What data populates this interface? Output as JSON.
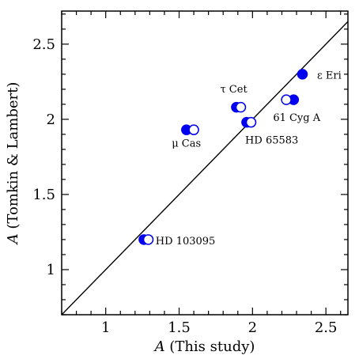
{
  "chart_data": {
    "type": "scatter",
    "xlabel_var": "A",
    "xlabel_text": " (This study)",
    "ylabel_var": "A",
    "ylabel_text": " (Tomkin & Lambert)",
    "xlim": [
      0.7,
      2.65
    ],
    "ylim": [
      0.7,
      2.72
    ],
    "xticks": [
      1,
      1.5,
      2,
      2.5
    ],
    "xtick_labels": [
      "1",
      "1.5",
      "2",
      "2.5"
    ],
    "yticks": [
      1,
      1.5,
      2,
      2.5
    ],
    "ytick_labels": [
      "1",
      "1.5",
      "2",
      "2.5"
    ],
    "identity_line": true,
    "grid": false,
    "colors": {
      "points": "#0000ee",
      "axes": "#000000"
    },
    "series": [
      {
        "marker": "filled-circle",
        "x": [
          1.26,
          1.55,
          1.89,
          1.96,
          2.28,
          2.34
        ],
        "y": [
          1.2,
          1.93,
          2.08,
          1.98,
          2.13,
          2.3
        ]
      },
      {
        "marker": "open-circle",
        "x": [
          1.29,
          1.6,
          1.92,
          1.99,
          2.23
        ],
        "y": [
          1.2,
          1.93,
          2.08,
          1.98,
          2.13
        ]
      }
    ],
    "annotations": [
      {
        "text": "HD 103095",
        "x": 1.34,
        "y": 1.19
      },
      {
        "text": "μ Cas",
        "x": 1.45,
        "y": 1.84
      },
      {
        "text": "τ Cet",
        "x": 1.78,
        "y": 2.2
      },
      {
        "text": "HD 65583",
        "x": 1.95,
        "y": 1.86
      },
      {
        "text": "61 Cyg A",
        "x": 2.14,
        "y": 2.01
      },
      {
        "text": "ε Eri",
        "x": 2.44,
        "y": 2.29
      }
    ]
  }
}
